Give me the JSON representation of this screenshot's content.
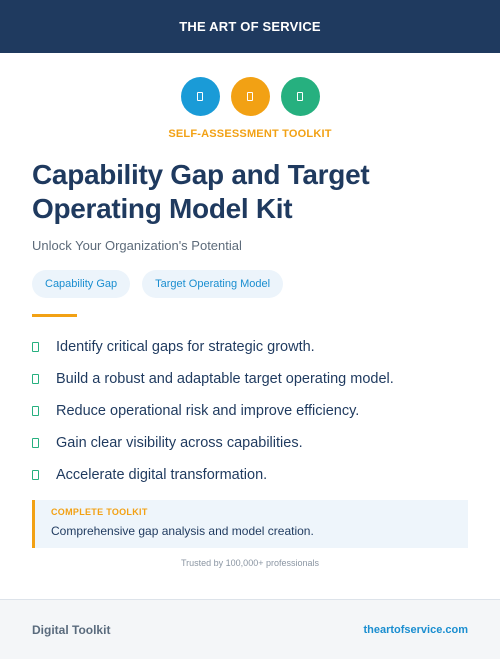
{
  "header": {
    "title": "THE ART OF SERVICE"
  },
  "icons": [
    {
      "name": "toolkit-icon-blue",
      "color": "#1a9bd7"
    },
    {
      "name": "toolkit-icon-orange",
      "color": "#f2a114"
    },
    {
      "name": "toolkit-icon-green",
      "color": "#26b07f"
    }
  ],
  "eyebrow": "SELF-ASSESSMENT TOOLKIT",
  "title": "Capability Gap and Target Operating Model Kit",
  "subtitle": "Unlock Your Organization's Potential",
  "tags": [
    "Capability Gap",
    "Target Operating Model"
  ],
  "benefits": [
    "Identify critical gaps for strategic growth.",
    "Build a robust and adaptable target operating model.",
    "Reduce operational risk and improve efficiency.",
    "Gain clear visibility across capabilities.",
    "Accelerate digital transformation."
  ],
  "callout": {
    "label": "COMPLETE TOOLKIT",
    "text": "Comprehensive gap analysis and model creation."
  },
  "trusted": "Trusted by 100,000+ professionals",
  "footer": {
    "left": "Digital Toolkit",
    "right": "theartofservice.com"
  },
  "colors": {
    "navy": "#1f3a5f",
    "accent_orange": "#f2a114",
    "accent_blue": "#1a9bd7",
    "accent_green": "#26b07f"
  }
}
